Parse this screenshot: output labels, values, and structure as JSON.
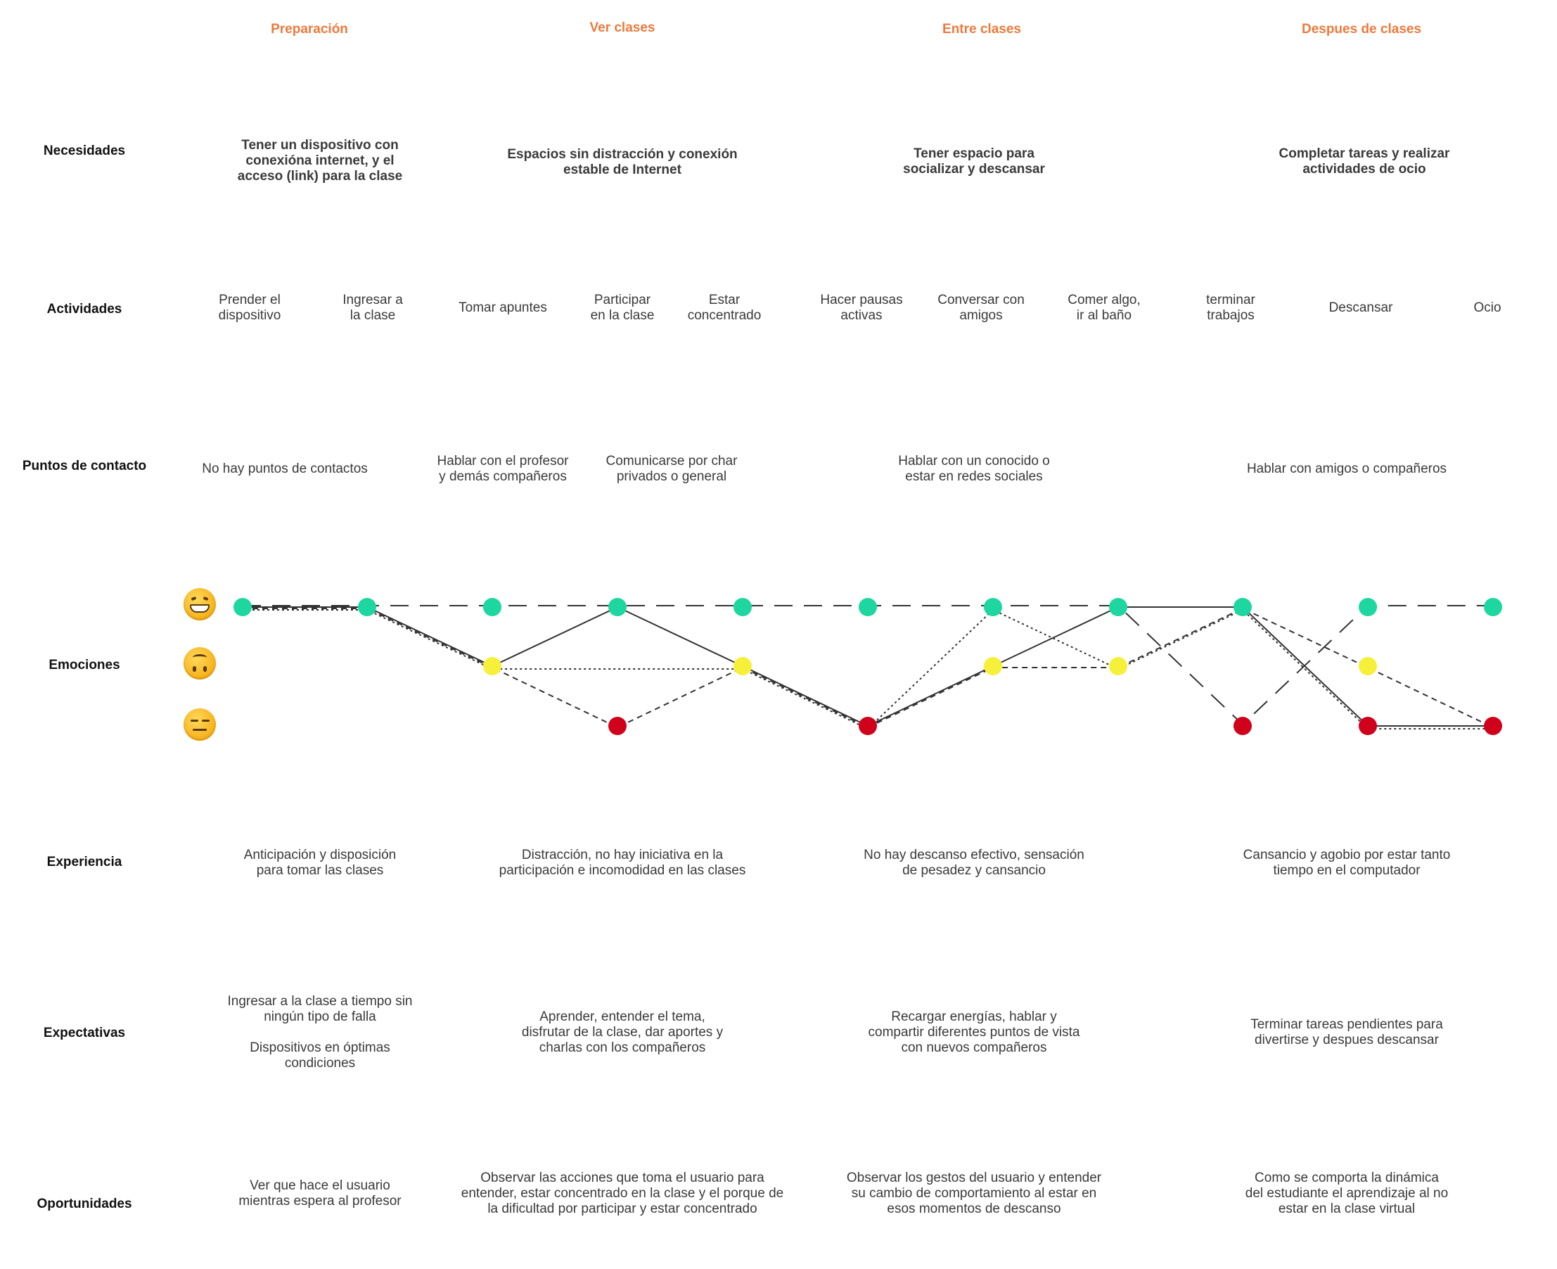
{
  "phases": [
    "Preparación",
    "Ver clases",
    "Entre clases",
    "Despues de clases"
  ],
  "row_labels": {
    "needs": "Necesidades",
    "activities": "Actividades",
    "touchpoints": "Puntos de contacto",
    "emotions": "Emociones",
    "experience": "Experiencia",
    "expectations": "Expectativas",
    "opportunities": "Oportunidades"
  },
  "needs": [
    "Tener un dispositivo con\nconexióna internet, y el\nacceso (link) para la clase",
    "Espacios sin distracción y conexión\nestable de Internet",
    "Tener espacio para\nsocializar y descansar",
    "Completar tareas y realizar\nactividades de ocio"
  ],
  "activities": [
    "Prender el\ndispositivo",
    "Ingresar a\nla clase",
    "Tomar apuntes",
    "Participar\nen la clase",
    "Estar\nconcentrado",
    "Hacer pausas\nactivas",
    "Conversar con\namigos",
    "Comer algo,\nir al baño",
    "terminar\ntrabajos",
    "Descansar",
    "Ocio"
  ],
  "touchpoints": [
    "No hay puntos de contactos",
    "Hablar con el profesor\ny demás compañeros",
    "Comunicarse por char\nprivados o  general",
    "Hablar con un conocido o\nestar en redes sociales",
    "Hablar con amigos o compañeros"
  ],
  "emotion_icons": [
    "grinning-face-icon",
    "upside-down-face-icon",
    "expressionless-face-icon"
  ],
  "emotion_levels": {
    "happy": 2,
    "neutral": 1,
    "sad": 0
  },
  "emotion_colors": {
    "happy": "#1ed6a0",
    "neutral": "#f7f03a",
    "sad": "#d0021b"
  },
  "emotion_points": [
    2,
    2,
    2,
    2,
    2,
    2,
    2,
    2,
    2,
    2,
    2
  ],
  "emotion_neutral_points": [
    2,
    4,
    6,
    7,
    9
  ],
  "emotion_sad_points": [
    3,
    5,
    8,
    9,
    10
  ],
  "emotion_series": [
    {
      "style": "solid",
      "values": [
        2,
        2,
        1,
        2,
        1,
        0,
        1,
        2,
        2,
        0,
        0
      ]
    },
    {
      "style": "longdash",
      "values": [
        2,
        2,
        2,
        2,
        2,
        2,
        2,
        2,
        0,
        2,
        2
      ]
    },
    {
      "style": "dotted",
      "values": [
        2,
        2,
        1,
        1,
        1,
        0,
        2,
        1,
        2,
        0,
        0
      ]
    },
    {
      "style": "dashed",
      "values": [
        2,
        2,
        1,
        0,
        1,
        0,
        1,
        1,
        2,
        1,
        0
      ]
    }
  ],
  "experience": [
    "Anticipación y disposición\npara tomar las clases",
    "Distracción, no hay iniciativa en la\nparticipación e incomodidad en las clases",
    "No hay descanso efectivo, sensación\nde pesadez y cansancio",
    "Cansancio y agobio por estar tanto\ntiempo en el computador"
  ],
  "expectations": [
    "Ingresar a la clase a tiempo sin\nningún tipo de falla\n\nDispositivos en óptimas\ncondiciones",
    "Aprender, entender el tema,\ndisfrutar de la clase, dar aportes y\ncharlas con los compañeros",
    "Recargar energías, hablar y\ncompartir diferentes puntos de vista\ncon nuevos compañeros",
    "Terminar tareas pendientes para\ndivertirse y despues descansar"
  ],
  "opportunities": [
    "Ver que hace el usuario\nmientras espera al profesor",
    "Observar las acciones que toma el usuario para\nentender, estar concentrado en la clase y el porque de\nla dificultad por participar y estar concentrado",
    "Observar los gestos del usuario y entender\nsu cambio de comportamiento al estar en\nesos momentos de descanso",
    "Como se comporta la dinámica\ndel estudiante el aprendizaje al no\nestar en la clase virtual"
  ]
}
